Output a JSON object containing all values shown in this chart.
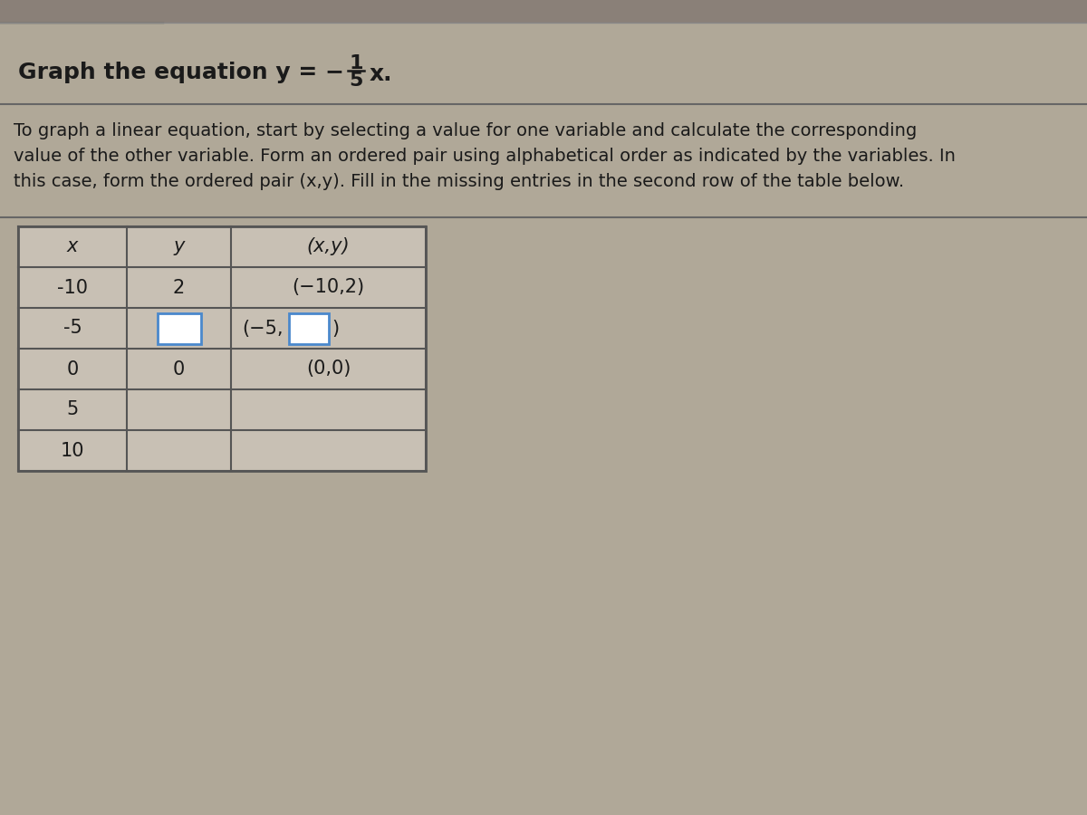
{
  "bg_color": "#b0a898",
  "text_color": "#1a1a1a",
  "title_prefix": "Graph the equation y = −",
  "frac_num": "1",
  "frac_den": "5",
  "title_suffix": "x.",
  "description_lines": [
    "To graph a linear equation, start by selecting a value for one variable and calculate the corresponding",
    "value of the other variable. Form an ordered pair using alphabetical order as indicated by the variables. In",
    "this case, form the ordered pair (x,y). Fill in the missing entries in the second row of the table below."
  ],
  "table_headers": [
    "x",
    "y",
    "(x,y)"
  ],
  "table_rows": [
    [
      "-10",
      "2",
      "(−10,2)"
    ],
    [
      "-5",
      "",
      "(−5,□)"
    ],
    [
      "0",
      "0",
      "(0,0)"
    ],
    [
      "5",
      "",
      ""
    ],
    [
      "10",
      "",
      ""
    ]
  ],
  "title_fontsize": 18,
  "desc_fontsize": 14,
  "table_fontsize": 15,
  "separator_color": "#666666",
  "table_border_color": "#555555",
  "table_bg": "#c8c0b4",
  "input_box_color": "#4a88cc",
  "input_box_bg": "#ffffff"
}
